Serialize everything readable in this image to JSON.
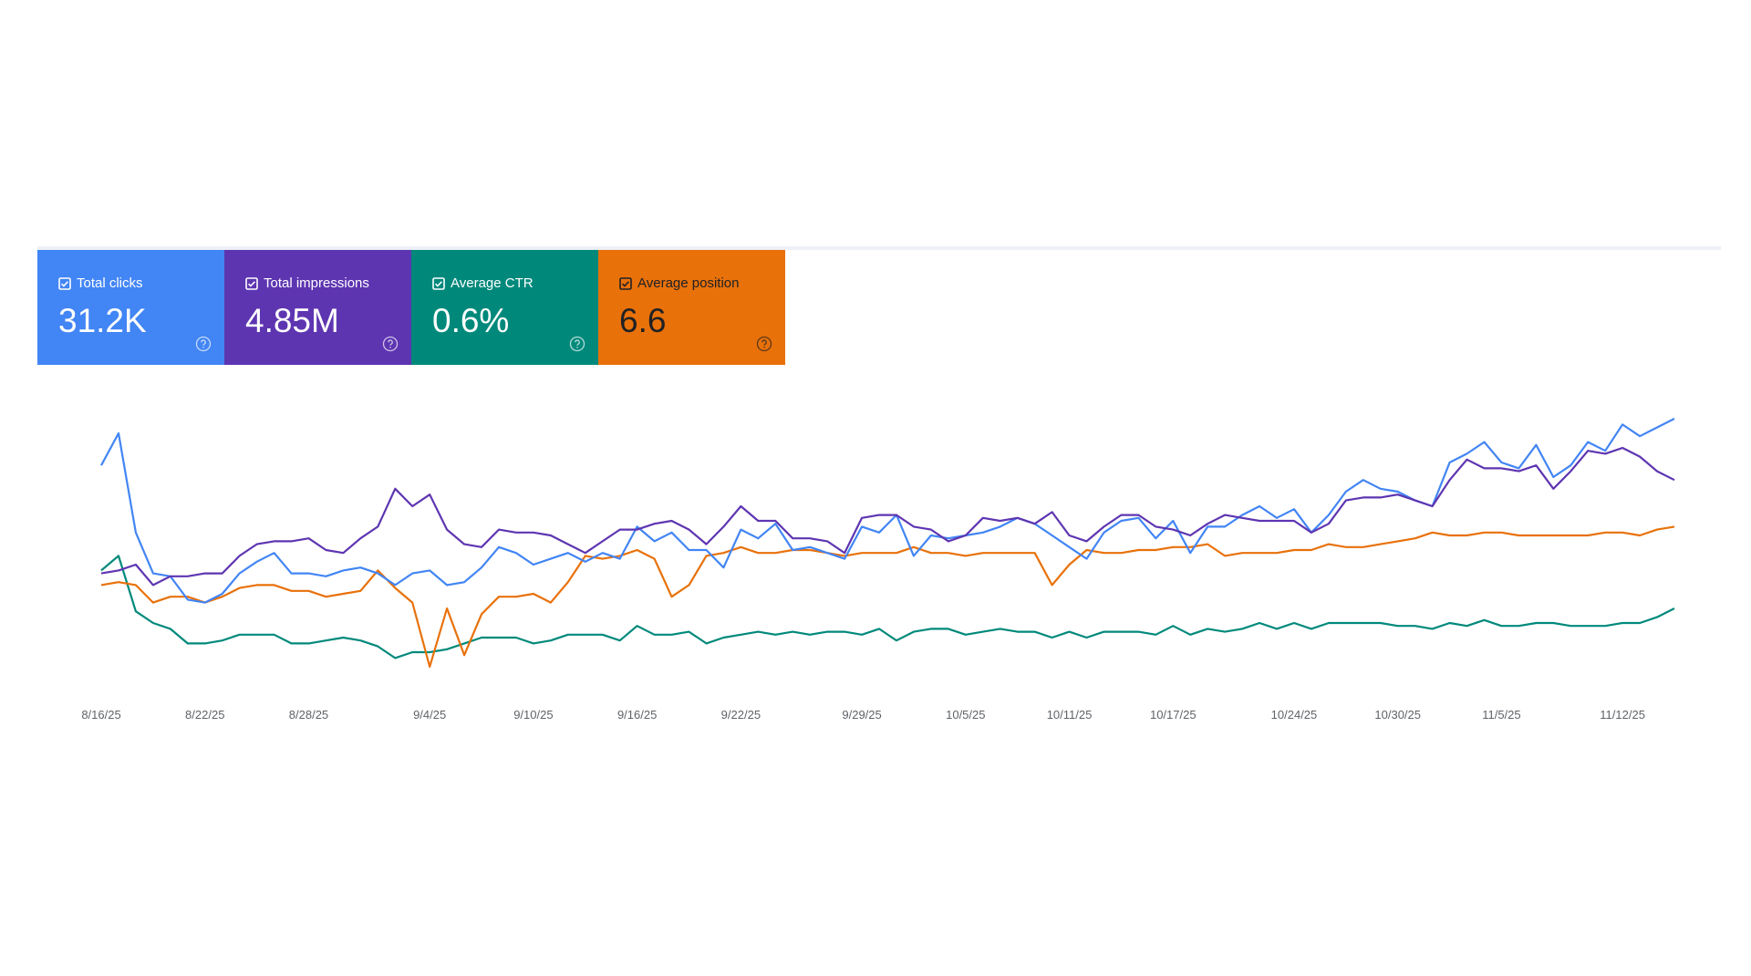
{
  "chart_data": {
    "type": "line",
    "categories": [
      "8/16/25",
      null,
      null,
      null,
      null,
      null,
      "8/22/25",
      null,
      null,
      null,
      null,
      null,
      "8/28/25",
      null,
      null,
      null,
      null,
      null,
      null,
      "9/4/25",
      null,
      null,
      null,
      null,
      null,
      "9/10/25",
      null,
      null,
      null,
      null,
      null,
      "9/16/25",
      null,
      null,
      null,
      null,
      null,
      "9/22/25",
      null,
      null,
      null,
      null,
      null,
      null,
      "9/29/25",
      null,
      null,
      null,
      null,
      null,
      "10/5/25",
      null,
      null,
      null,
      null,
      null,
      "10/11/25",
      null,
      null,
      null,
      null,
      null,
      "10/17/25",
      null,
      null,
      null,
      null,
      null,
      null,
      "10/24/25",
      null,
      null,
      null,
      null,
      null,
      "10/30/25",
      null,
      null,
      null,
      null,
      null,
      "11/5/25",
      null,
      null,
      null,
      null,
      null,
      null,
      "11/12/25",
      null,
      null,
      null
    ],
    "ylim": [
      0,
      100
    ],
    "series": [
      {
        "name": "Total clicks",
        "total": "31.2K",
        "color": "#4285f4",
        "values": [
          79,
          90,
          56,
          42,
          41,
          33,
          32,
          35,
          42,
          46,
          49,
          42,
          42,
          41,
          43,
          44,
          42,
          38,
          42,
          43,
          38,
          39,
          44,
          51,
          49,
          45,
          47,
          49,
          46,
          49,
          47,
          58,
          53,
          56,
          50,
          50,
          44,
          57,
          54,
          59,
          50,
          51,
          49,
          47,
          58,
          56,
          62,
          48,
          55,
          54,
          55,
          56,
          58,
          61,
          59,
          55,
          51,
          47,
          56,
          60,
          61,
          54,
          60,
          49,
          58,
          58,
          62,
          65,
          61,
          64,
          56,
          62,
          70,
          74,
          71,
          70,
          67,
          65,
          80,
          83,
          87,
          80,
          78,
          86,
          75,
          79,
          87,
          84,
          93,
          89,
          92,
          95
        ]
      },
      {
        "name": "Total impressions",
        "total": "4.85M",
        "color": "#5e35b1",
        "values": [
          42,
          43,
          45,
          38,
          41,
          41,
          42,
          42,
          48,
          52,
          53,
          53,
          54,
          50,
          49,
          54,
          58,
          71,
          65,
          69,
          57,
          52,
          51,
          57,
          56,
          56,
          55,
          52,
          49,
          53,
          57,
          57,
          59,
          60,
          57,
          52,
          58,
          65,
          60,
          60,
          54,
          54,
          53,
          49,
          61,
          62,
          62,
          58,
          57,
          53,
          55,
          61,
          60,
          61,
          59,
          63,
          55,
          53,
          58,
          62,
          62,
          58,
          57,
          55,
          59,
          62,
          61,
          60,
          60,
          60,
          56,
          59,
          67,
          68,
          68,
          69,
          67,
          65,
          74,
          81,
          78,
          78,
          77,
          79,
          71,
          77,
          84,
          83,
          85,
          82,
          77,
          74
        ]
      },
      {
        "name": "Average CTR",
        "total": "0.6%",
        "color": "#00897b",
        "values": [
          43,
          48,
          29,
          25,
          23,
          18,
          18,
          19,
          21,
          21,
          21,
          18,
          18,
          19,
          20,
          19,
          17,
          13,
          15,
          15,
          16,
          18,
          20,
          20,
          20,
          18,
          19,
          21,
          21,
          21,
          19,
          24,
          21,
          21,
          22,
          18,
          20,
          21,
          22,
          21,
          22,
          21,
          22,
          22,
          21,
          23,
          19,
          22,
          23,
          23,
          21,
          22,
          23,
          22,
          22,
          20,
          22,
          20,
          22,
          22,
          22,
          21,
          24,
          21,
          23,
          22,
          23,
          25,
          23,
          25,
          23,
          25,
          25,
          25,
          25,
          24,
          24,
          23,
          25,
          24,
          26,
          24,
          24,
          25,
          25,
          24,
          24,
          24,
          25,
          25,
          27,
          30
        ]
      },
      {
        "name": "Average position",
        "total": "6.6",
        "color": "#e8710a",
        "values": [
          38,
          39,
          38,
          32,
          34,
          34,
          32,
          34,
          37,
          38,
          38,
          36,
          36,
          34,
          35,
          36,
          43,
          37,
          32,
          10,
          30,
          14,
          28,
          34,
          34,
          35,
          32,
          39,
          48,
          47,
          48,
          50,
          47,
          34,
          38,
          48,
          49,
          51,
          49,
          49,
          50,
          50,
          49,
          48,
          49,
          49,
          49,
          51,
          49,
          49,
          48,
          49,
          49,
          49,
          49,
          38,
          45,
          50,
          49,
          49,
          50,
          50,
          51,
          51,
          52,
          48,
          49,
          49,
          49,
          50,
          50,
          52,
          51,
          51,
          52,
          53,
          54,
          56,
          55,
          55,
          56,
          56,
          55,
          55,
          55,
          55,
          55,
          56,
          56,
          55,
          57,
          58
        ]
      }
    ]
  }
}
